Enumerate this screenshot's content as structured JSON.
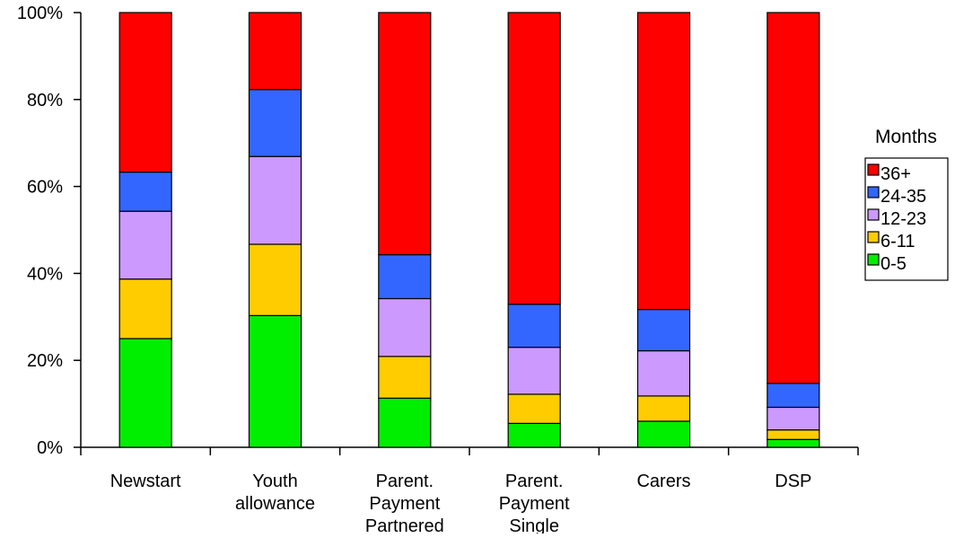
{
  "chart_data": {
    "type": "bar",
    "stacked": true,
    "percent": true,
    "categories": [
      [
        "Newstart"
      ],
      [
        "Youth",
        "allowance"
      ],
      [
        "Parent.",
        "Payment",
        "Partnered"
      ],
      [
        "Parent.",
        "Payment",
        "Single"
      ],
      [
        "Carers"
      ],
      [
        "DSP"
      ]
    ],
    "series": [
      {
        "name": "0-5",
        "color": "#00ee00",
        "values": [
          25,
          30.3,
          11.3,
          5.5,
          6,
          1.8
        ]
      },
      {
        "name": "6-11",
        "color": "#ffcc00",
        "values": [
          13.7,
          16.4,
          9.6,
          6.7,
          5.8,
          2.2
        ]
      },
      {
        "name": "12-23",
        "color": "#cc99ff",
        "values": [
          15.6,
          20.2,
          13.3,
          10.8,
          10.4,
          5.2
        ]
      },
      {
        "name": "24-35",
        "color": "#3366ff",
        "values": [
          9,
          15.4,
          10.1,
          9.9,
          9.5,
          5.5
        ]
      },
      {
        "name": "36+",
        "color": "#ff0000",
        "values": [
          36.7,
          17.7,
          55.7,
          67.1,
          68.3,
          85.3
        ]
      }
    ],
    "legend_title": "Months",
    "legend_position": "right",
    "yticks": [
      "0%",
      "20%",
      "40%",
      "60%",
      "80%",
      "100%"
    ],
    "ylim": [
      0,
      100
    ],
    "grid": false,
    "title": "",
    "xlabel": "",
    "ylabel": ""
  }
}
